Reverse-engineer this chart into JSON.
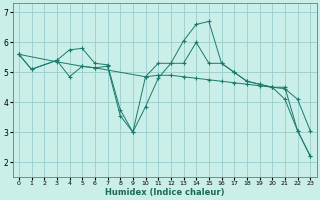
{
  "xlabel": "Humidex (Indice chaleur)",
  "background_color": "#caeee8",
  "grid_color": "#99cccc",
  "line_color": "#1a7a6a",
  "xlim": [
    -0.5,
    23.5
  ],
  "ylim": [
    1.5,
    7.3
  ],
  "yticks": [
    2,
    3,
    4,
    5,
    6,
    7
  ],
  "xticks": [
    0,
    1,
    2,
    3,
    4,
    5,
    6,
    7,
    8,
    9,
    10,
    11,
    12,
    13,
    14,
    15,
    16,
    17,
    18,
    19,
    20,
    21,
    22,
    23
  ],
  "line1_x": [
    0,
    1,
    3,
    4,
    5,
    6,
    7,
    8,
    9,
    10,
    11,
    12,
    13,
    14,
    15,
    16,
    17,
    18,
    19,
    20,
    21,
    22,
    23
  ],
  "line1_y": [
    5.6,
    5.1,
    5.4,
    5.75,
    5.8,
    5.3,
    5.25,
    3.75,
    3.0,
    3.85,
    4.8,
    5.3,
    5.3,
    6.0,
    5.3,
    5.3,
    5.0,
    4.7,
    4.6,
    4.5,
    4.5,
    3.05,
    2.2
  ],
  "line2_x": [
    0,
    3,
    5,
    6,
    10,
    11,
    12,
    13,
    14,
    15,
    16,
    17,
    18,
    19,
    20,
    21,
    22,
    23
  ],
  "line2_y": [
    5.6,
    5.35,
    5.2,
    5.15,
    4.85,
    4.9,
    4.9,
    4.85,
    4.8,
    4.75,
    4.7,
    4.65,
    4.6,
    4.55,
    4.5,
    4.45,
    4.1,
    3.05
  ],
  "line3_x": [
    0,
    1,
    3,
    4,
    5,
    6,
    7,
    8,
    9,
    10,
    11,
    12,
    13,
    14,
    15,
    16,
    17,
    18,
    19,
    20,
    21,
    22,
    23
  ],
  "line3_y": [
    5.6,
    5.1,
    5.4,
    4.85,
    5.2,
    5.15,
    5.2,
    3.55,
    3.0,
    4.85,
    5.3,
    5.3,
    6.05,
    6.6,
    6.7,
    5.3,
    5.0,
    4.7,
    4.6,
    4.5,
    4.1,
    3.05,
    2.2
  ]
}
